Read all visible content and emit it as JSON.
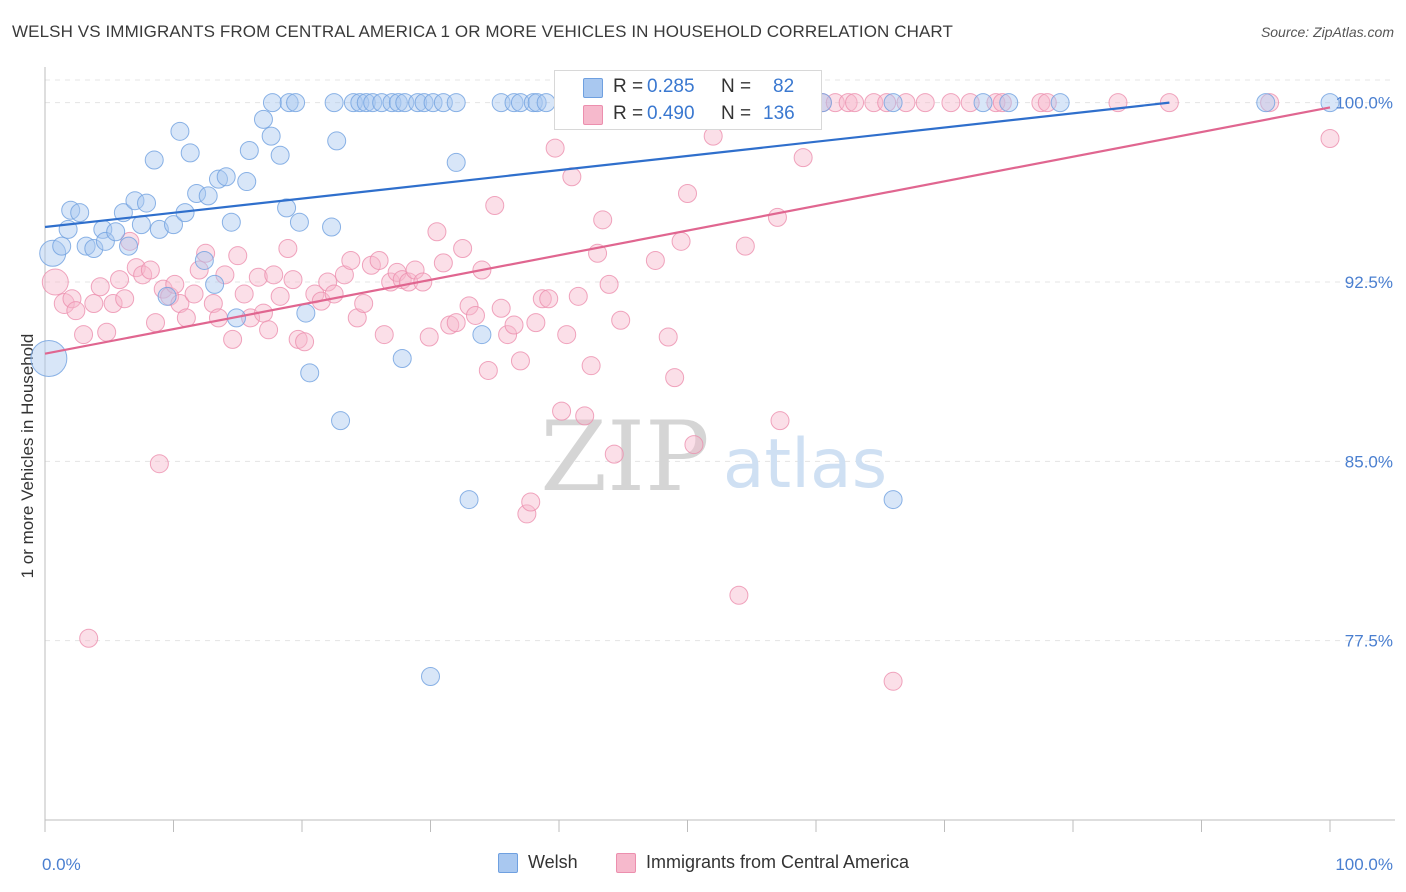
{
  "header": {
    "title": "WELSH VS IMMIGRANTS FROM CENTRAL AMERICA 1 OR MORE VEHICLES IN HOUSEHOLD CORRELATION CHART",
    "source": "Source: ZipAtlas.com"
  },
  "watermark": {
    "zip": "ZIP",
    "atlas": "atlas"
  },
  "legend_stats": {
    "welsh": {
      "r_label": "R =",
      "r_value": "0.285",
      "n_label": "N =",
      "n_value": "82"
    },
    "imm": {
      "r_label": "R =",
      "r_value": "0.490",
      "n_label": "N =",
      "n_value": "136"
    }
  },
  "bottom_legend": {
    "welsh": "Welsh",
    "imm": "Immigrants from Central America"
  },
  "colors": {
    "welsh_fill": "#a9c8f0",
    "welsh_stroke": "#6fa0e0",
    "welsh_line": "#2f6fcc",
    "imm_fill": "#f6b9cc",
    "imm_stroke": "#ec8fae",
    "imm_line": "#e06690",
    "tick_label": "#4a7fd0",
    "grid": "#e4e4e4"
  },
  "chart_data": {
    "type": "scatter",
    "title": "WELSH VS IMMIGRANTS FROM CENTRAL AMERICA 1 OR MORE VEHICLES IN HOUSEHOLD CORRELATION CHART",
    "xlabel": "",
    "ylabel": "1 or more Vehicles in Household",
    "xlim": [
      0,
      100
    ],
    "ylim": [
      70.0,
      101.7
    ],
    "x_tick_labels": [
      "0.0%",
      "100.0%"
    ],
    "y_ticks": [
      77.5,
      85.0,
      92.5,
      100.0
    ],
    "y_tick_labels": [
      "77.5%",
      "85.0%",
      "92.5%",
      "100.0%"
    ],
    "grid": true,
    "legend": "bottom",
    "series": [
      {
        "name": "Welsh",
        "trend": [
          [
            0,
            94.8
          ],
          [
            87.5,
            100.0
          ]
        ],
        "points": [
          [
            0.6,
            93.7,
            13
          ],
          [
            0.3,
            89.3,
            18
          ],
          [
            1.3,
            94.0,
            9
          ],
          [
            1.8,
            94.7,
            9
          ],
          [
            2.0,
            95.5,
            9
          ],
          [
            2.7,
            95.4,
            9
          ],
          [
            3.2,
            94.0,
            9
          ],
          [
            3.8,
            93.9,
            9
          ],
          [
            4.5,
            94.7,
            9
          ],
          [
            4.7,
            94.2,
            9
          ],
          [
            5.5,
            94.6,
            9
          ],
          [
            6.1,
            95.4,
            9
          ],
          [
            6.5,
            94.0,
            9
          ],
          [
            7.0,
            95.9,
            9
          ],
          [
            7.5,
            94.9,
            9
          ],
          [
            7.9,
            95.8,
            9
          ],
          [
            8.5,
            97.6,
            9
          ],
          [
            8.9,
            94.7,
            9
          ],
          [
            9.5,
            91.9,
            9
          ],
          [
            10.0,
            94.9,
            9
          ],
          [
            10.5,
            98.8,
            9
          ],
          [
            10.9,
            95.4,
            9
          ],
          [
            11.3,
            97.9,
            9
          ],
          [
            11.8,
            96.2,
            9
          ],
          [
            12.4,
            93.4,
            9
          ],
          [
            12.7,
            96.1,
            9
          ],
          [
            13.2,
            92.4,
            9
          ],
          [
            13.5,
            96.8,
            9
          ],
          [
            14.1,
            96.9,
            9
          ],
          [
            14.5,
            95.0,
            9
          ],
          [
            14.9,
            91.0,
            9
          ],
          [
            15.7,
            96.7,
            9
          ],
          [
            15.9,
            98.0,
            9
          ],
          [
            17.0,
            99.3,
            9
          ],
          [
            17.7,
            100.0,
            9
          ],
          [
            17.6,
            98.6,
            9
          ],
          [
            18.3,
            97.8,
            9
          ],
          [
            18.8,
            95.6,
            9
          ],
          [
            19.0,
            100.0,
            9
          ],
          [
            19.5,
            100.0,
            9
          ],
          [
            19.8,
            95.0,
            9
          ],
          [
            20.3,
            91.2,
            9
          ],
          [
            20.6,
            88.7,
            9
          ],
          [
            22.3,
            94.8,
            9
          ],
          [
            22.5,
            100.0,
            9
          ],
          [
            22.7,
            98.4,
            9
          ],
          [
            23.0,
            86.7,
            9
          ],
          [
            24.0,
            100.0,
            9
          ],
          [
            24.5,
            100.0,
            9
          ],
          [
            25.0,
            100.0,
            9
          ],
          [
            25.5,
            100.0,
            9
          ],
          [
            26.2,
            100.0,
            9
          ],
          [
            27.0,
            100.0,
            9
          ],
          [
            27.5,
            100.0,
            9
          ],
          [
            27.8,
            89.3,
            9
          ],
          [
            28.0,
            100.0,
            9
          ],
          [
            29.0,
            100.0,
            9
          ],
          [
            29.5,
            100.0,
            9
          ],
          [
            30.2,
            100.0,
            9
          ],
          [
            30.0,
            76.0,
            9
          ],
          [
            31.0,
            100.0,
            9
          ],
          [
            32.0,
            100.0,
            9
          ],
          [
            32.0,
            97.5,
            9
          ],
          [
            33.0,
            83.4,
            9
          ],
          [
            34.0,
            90.3,
            9
          ],
          [
            35.5,
            100.0,
            9
          ],
          [
            36.5,
            100.0,
            9
          ],
          [
            37.0,
            100.0,
            9
          ],
          [
            38.0,
            100.0,
            9
          ],
          [
            38.3,
            100.0,
            9
          ],
          [
            39.0,
            100.0,
            9
          ],
          [
            40.5,
            100.0,
            9
          ],
          [
            47.5,
            100.0,
            9
          ],
          [
            49.0,
            100.0,
            9
          ],
          [
            53.0,
            100.0,
            9
          ],
          [
            60.5,
            100.0,
            9
          ],
          [
            66.0,
            100.0,
            9
          ],
          [
            66.0,
            83.4,
            9
          ],
          [
            73.0,
            100.0,
            9
          ],
          [
            75.0,
            100.0,
            9
          ],
          [
            79.0,
            100.0,
            9
          ],
          [
            95.0,
            100.0,
            9
          ],
          [
            100.0,
            100.0,
            9
          ]
        ]
      },
      {
        "name": "Immigrants from Central America",
        "trend": [
          [
            0,
            89.5
          ],
          [
            100,
            99.8
          ]
        ],
        "points": [
          [
            0.8,
            92.5,
            13
          ],
          [
            1.5,
            91.6,
            10
          ],
          [
            2.1,
            91.8,
            9
          ],
          [
            2.4,
            91.3,
            9
          ],
          [
            3.0,
            90.3,
            9
          ],
          [
            3.4,
            77.6,
            9
          ],
          [
            3.8,
            91.6,
            9
          ],
          [
            4.3,
            92.3,
            9
          ],
          [
            4.8,
            90.4,
            9
          ],
          [
            5.3,
            91.6,
            9
          ],
          [
            5.8,
            92.6,
            9
          ],
          [
            6.2,
            91.8,
            9
          ],
          [
            6.6,
            94.2,
            9
          ],
          [
            7.1,
            93.1,
            9
          ],
          [
            7.6,
            92.8,
            9
          ],
          [
            8.2,
            93.0,
            9
          ],
          [
            8.6,
            90.8,
            9
          ],
          [
            8.9,
            84.9,
            9
          ],
          [
            9.2,
            92.2,
            9
          ],
          [
            9.7,
            91.9,
            9
          ],
          [
            10.1,
            92.4,
            9
          ],
          [
            10.5,
            91.6,
            9
          ],
          [
            11.0,
            91.0,
            9
          ],
          [
            11.6,
            92.0,
            9
          ],
          [
            12.0,
            93.0,
            9
          ],
          [
            12.5,
            93.7,
            9
          ],
          [
            13.1,
            91.6,
            9
          ],
          [
            13.5,
            91.0,
            9
          ],
          [
            14.0,
            92.8,
            9
          ],
          [
            14.6,
            90.1,
            9
          ],
          [
            15.0,
            93.6,
            9
          ],
          [
            15.5,
            92.0,
            9
          ],
          [
            16.0,
            91.0,
            9
          ],
          [
            16.6,
            92.7,
            9
          ],
          [
            17.0,
            91.2,
            9
          ],
          [
            17.4,
            90.5,
            9
          ],
          [
            17.8,
            92.8,
            9
          ],
          [
            18.3,
            91.9,
            9
          ],
          [
            18.9,
            93.9,
            9
          ],
          [
            19.3,
            92.6,
            9
          ],
          [
            19.7,
            90.1,
            9
          ],
          [
            20.2,
            90.0,
            9
          ],
          [
            21.0,
            92.0,
            9
          ],
          [
            21.5,
            91.7,
            9
          ],
          [
            22.0,
            92.5,
            9
          ],
          [
            22.5,
            92.0,
            9
          ],
          [
            23.3,
            92.8,
            9
          ],
          [
            23.8,
            93.4,
            9
          ],
          [
            24.3,
            91.0,
            9
          ],
          [
            24.8,
            91.6,
            9
          ],
          [
            25.4,
            93.2,
            9
          ],
          [
            26.0,
            93.4,
            9
          ],
          [
            26.4,
            90.3,
            9
          ],
          [
            26.9,
            92.5,
            9
          ],
          [
            27.4,
            92.9,
            9
          ],
          [
            27.8,
            92.6,
            9
          ],
          [
            28.3,
            92.5,
            9
          ],
          [
            28.8,
            93.0,
            9
          ],
          [
            29.4,
            92.5,
            9
          ],
          [
            29.9,
            90.2,
            9
          ],
          [
            30.5,
            94.6,
            9
          ],
          [
            31.0,
            93.3,
            9
          ],
          [
            31.5,
            90.7,
            9
          ],
          [
            32.0,
            90.8,
            9
          ],
          [
            32.5,
            93.9,
            9
          ],
          [
            33.0,
            91.5,
            9
          ],
          [
            33.5,
            91.1,
            9
          ],
          [
            34.0,
            93.0,
            9
          ],
          [
            34.5,
            88.8,
            9
          ],
          [
            35.0,
            95.7,
            9
          ],
          [
            35.5,
            91.4,
            9
          ],
          [
            36.0,
            90.3,
            9
          ],
          [
            36.5,
            90.7,
            9
          ],
          [
            37.0,
            89.2,
            9
          ],
          [
            37.5,
            82.8,
            9
          ],
          [
            37.8,
            83.3,
            9
          ],
          [
            38.2,
            90.8,
            9
          ],
          [
            38.7,
            91.8,
            9
          ],
          [
            39.2,
            91.8,
            9
          ],
          [
            39.7,
            98.1,
            9
          ],
          [
            40.2,
            87.1,
            9
          ],
          [
            40.6,
            90.3,
            9
          ],
          [
            41.0,
            96.9,
            9
          ],
          [
            41.5,
            91.9,
            9
          ],
          [
            42.0,
            86.9,
            9
          ],
          [
            42.5,
            89.0,
            9
          ],
          [
            43.0,
            93.7,
            9
          ],
          [
            43.4,
            95.1,
            9
          ],
          [
            43.9,
            92.4,
            9
          ],
          [
            44.3,
            85.3,
            9
          ],
          [
            44.8,
            90.9,
            9
          ],
          [
            45.3,
            100.0,
            9
          ],
          [
            46.0,
            100.0,
            9
          ],
          [
            47.5,
            93.4,
            9
          ],
          [
            48.5,
            90.2,
            9
          ],
          [
            49.0,
            88.5,
            9
          ],
          [
            49.5,
            94.2,
            9
          ],
          [
            50.0,
            96.2,
            9
          ],
          [
            50.5,
            85.7,
            9
          ],
          [
            51.0,
            100.0,
            9
          ],
          [
            52.0,
            98.6,
            9
          ],
          [
            53.5,
            100.0,
            9
          ],
          [
            54.0,
            79.4,
            9
          ],
          [
            54.5,
            94.0,
            9
          ],
          [
            55.0,
            100.0,
            9
          ],
          [
            56.0,
            100.0,
            9
          ],
          [
            57.0,
            95.2,
            9
          ],
          [
            57.2,
            86.7,
            9
          ],
          [
            58.5,
            100.0,
            9
          ],
          [
            59.0,
            97.7,
            9
          ],
          [
            59.5,
            100.0,
            9
          ],
          [
            60.5,
            100.0,
            9
          ],
          [
            61.5,
            100.0,
            9
          ],
          [
            62.5,
            100.0,
            9
          ],
          [
            63.0,
            100.0,
            9
          ],
          [
            64.5,
            100.0,
            9
          ],
          [
            65.5,
            100.0,
            9
          ],
          [
            66.0,
            75.8,
            9
          ],
          [
            67.0,
            100.0,
            9
          ],
          [
            68.5,
            100.0,
            9
          ],
          [
            70.5,
            100.0,
            9
          ],
          [
            72.0,
            100.0,
            9
          ],
          [
            74.0,
            100.0,
            9
          ],
          [
            74.5,
            100.0,
            9
          ],
          [
            77.5,
            100.0,
            9
          ],
          [
            78.0,
            100.0,
            9
          ],
          [
            83.5,
            100.0,
            9
          ],
          [
            87.5,
            100.0,
            9
          ],
          [
            95.3,
            100.0,
            9
          ],
          [
            100.0,
            98.5,
            9
          ]
        ]
      }
    ]
  }
}
